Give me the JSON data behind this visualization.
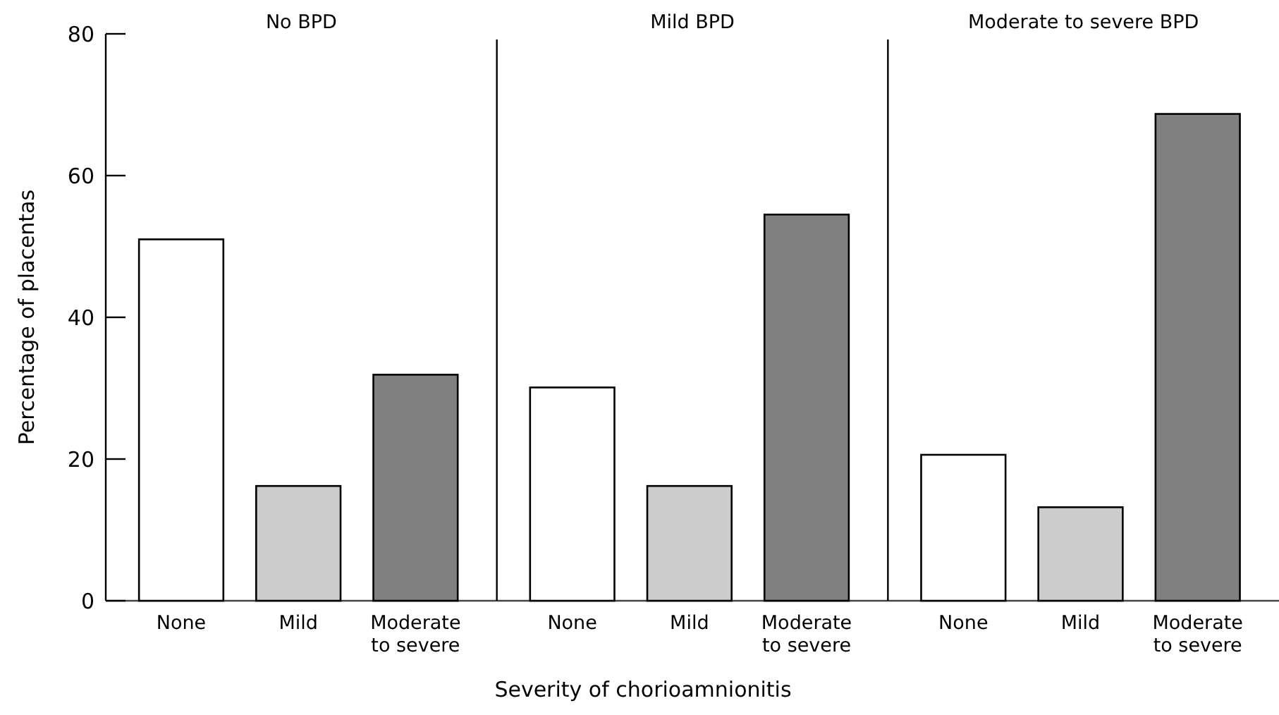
{
  "chart_data": [
    {
      "type": "bar",
      "title": "No BPD",
      "ylabel": "Percentage of placentas",
      "categories": [
        "None",
        "Mild",
        "Moderate to severe"
      ],
      "values": [
        51.0,
        16.2,
        31.9
      ],
      "colors": [
        "#ffffff",
        "#cccccc",
        "#808080"
      ],
      "ylim": [
        0,
        80
      ],
      "yticks": [
        0,
        20,
        40,
        60,
        80
      ]
    },
    {
      "type": "bar",
      "title": "Mild BPD",
      "xlabel": "Severity of chorioamnionitis",
      "categories": [
        "None",
        "Mild",
        "Moderate to severe"
      ],
      "values": [
        30.1,
        16.2,
        54.5
      ],
      "colors": [
        "#ffffff",
        "#cccccc",
        "#808080"
      ],
      "ylim": [
        0,
        80
      ],
      "tick_labels": "x"
    },
    {
      "type": "bar",
      "title": "Moderate to severe BPD",
      "categories": [
        "None",
        "Mild",
        "Moderate to severe"
      ],
      "values": [
        20.6,
        13.2,
        68.7
      ],
      "colors": [
        "#ffffff",
        "#cccccc",
        "#808080"
      ],
      "ylim": [
        0,
        80
      ],
      "tick_labels": "x"
    }
  ]
}
